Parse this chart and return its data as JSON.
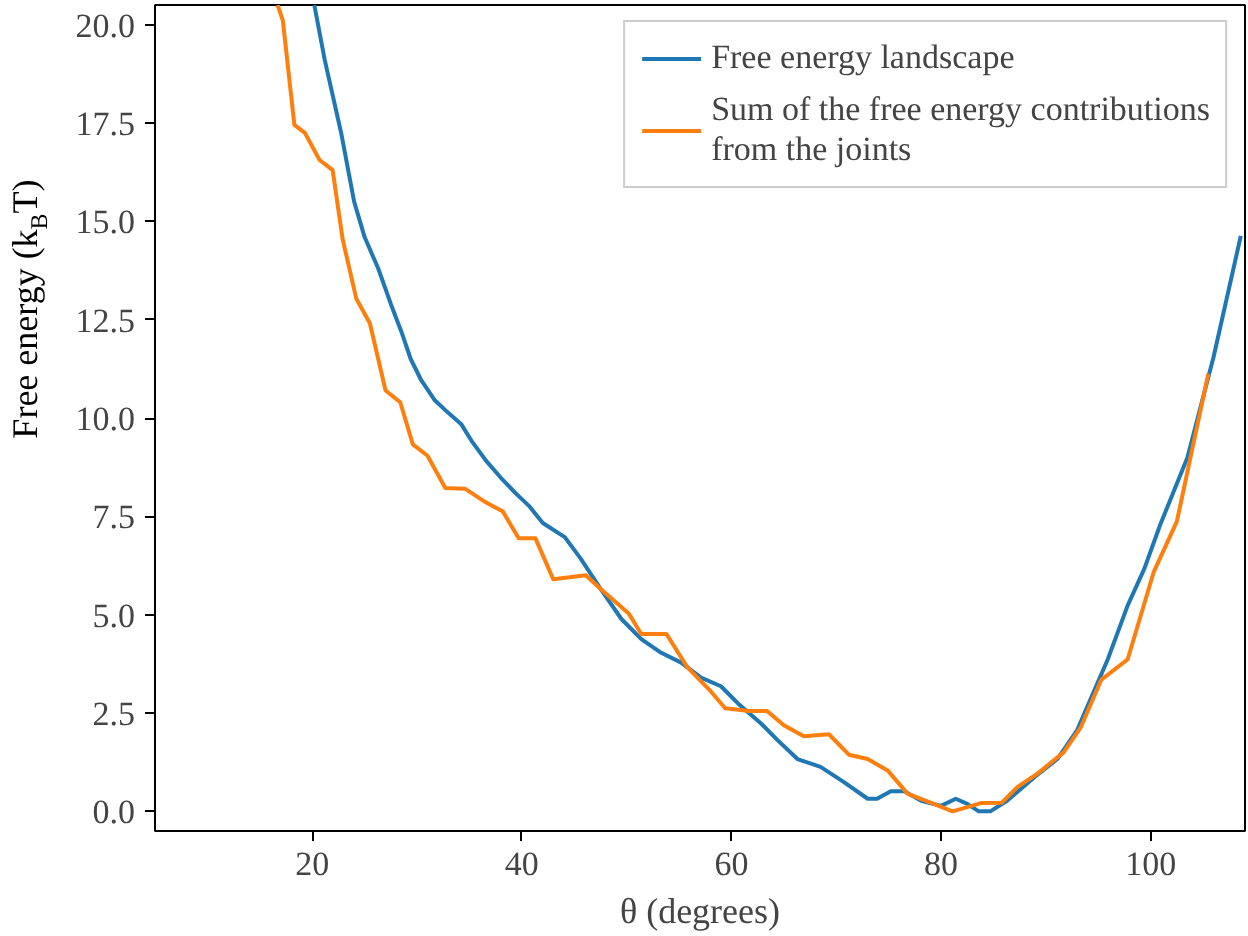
{
  "chart_data": {
    "type": "line",
    "xlabel": "θ (degrees)",
    "ylabel": "Free energy (k$_{B}$T)",
    "xlim": [
      5,
      109
    ],
    "ylim": [
      -0.5,
      20.5
    ],
    "xticks": [
      20,
      40,
      60,
      80,
      100
    ],
    "yticks": [
      {
        "value": 0,
        "label": "0.0"
      },
      {
        "value": 2.5,
        "label": "2.5"
      },
      {
        "value": 5,
        "label": "5.0"
      },
      {
        "value": 7.5,
        "label": "7.5"
      },
      {
        "value": 10,
        "label": "10.0"
      },
      {
        "value": 12.5,
        "label": "12.5"
      },
      {
        "value": 15,
        "label": "15.0"
      },
      {
        "value": 17.5,
        "label": "17.5"
      },
      {
        "value": 20,
        "label": "20.0"
      }
    ],
    "grid": false,
    "legend": "top right",
    "series": [
      {
        "name": "Free energy landscape",
        "color": "#1f77b4",
        "x": [
          20.2,
          21.2,
          22.8,
          24.0,
          25.0,
          26.3,
          27.5,
          28.5,
          29.4,
          30.4,
          31.7,
          32.9,
          34.2,
          35.2,
          36.6,
          38.0,
          39.4,
          40.7,
          42.0,
          44.1,
          45.6,
          47.5,
          49.5,
          51.4,
          53.3,
          55.2,
          57.1,
          59.0,
          60.6,
          62.8,
          64.4,
          66.3,
          68.5,
          70.7,
          73.0,
          73.9,
          75.2,
          76.5,
          78.1,
          80.0,
          81.4,
          82.5,
          83.6,
          84.7,
          86.3,
          88.9,
          91.1,
          93.0,
          95.9,
          97.8,
          99.4,
          100.9,
          103.5,
          106.0,
          108.6
        ],
        "values": [
          20.5,
          19.1,
          17.2,
          15.5,
          14.6,
          13.8,
          12.9,
          12.2,
          11.5,
          10.96,
          10.45,
          10.15,
          9.85,
          9.42,
          8.91,
          8.48,
          8.09,
          7.76,
          7.33,
          6.97,
          6.43,
          5.66,
          4.89,
          4.38,
          4.03,
          3.78,
          3.4,
          3.18,
          2.75,
          2.24,
          1.81,
          1.33,
          1.13,
          0.75,
          0.32,
          0.32,
          0.51,
          0.51,
          0.27,
          0.14,
          0.32,
          0.19,
          0.0,
          0.0,
          0.27,
          0.87,
          1.33,
          2.07,
          3.86,
          5.23,
          6.17,
          7.28,
          8.99,
          11.55,
          14.63
        ]
      },
      {
        "name": "Sum of the free energy contributions\nfrom the joints",
        "color": "#ff7f0e",
        "x": [
          16.7,
          17.2,
          18.3,
          19.3,
          20.7,
          21.95,
          22.9,
          24.2,
          25.5,
          27.0,
          28.4,
          29.6,
          31.0,
          32.7,
          34.6,
          36.6,
          38.2,
          39.7,
          41.3,
          43.0,
          46.1,
          47.5,
          50.2,
          51.4,
          53.8,
          55.8,
          57.9,
          59.4,
          61.7,
          63.4,
          65.0,
          66.9,
          69.3,
          71.2,
          73.0,
          74.9,
          76.8,
          79.0,
          81.1,
          83.8,
          85.8,
          87.3,
          89.2,
          91.7,
          93.3,
          95.3,
          97.8,
          100.3,
          102.5,
          105.5
        ],
        "values": [
          20.5,
          20.1,
          17.45,
          17.25,
          16.56,
          16.3,
          14.55,
          13.04,
          12.41,
          10.7,
          10.4,
          9.33,
          9.04,
          8.22,
          8.2,
          7.85,
          7.62,
          6.94,
          6.94,
          5.9,
          6.0,
          5.66,
          5.03,
          4.51,
          4.51,
          3.66,
          3.09,
          2.62,
          2.55,
          2.55,
          2.19,
          1.91,
          1.96,
          1.44,
          1.33,
          1.04,
          0.45,
          0.22,
          0.0,
          0.21,
          0.22,
          0.62,
          0.96,
          1.5,
          2.12,
          3.35,
          3.86,
          6.09,
          7.37,
          11.13
        ]
      }
    ]
  }
}
